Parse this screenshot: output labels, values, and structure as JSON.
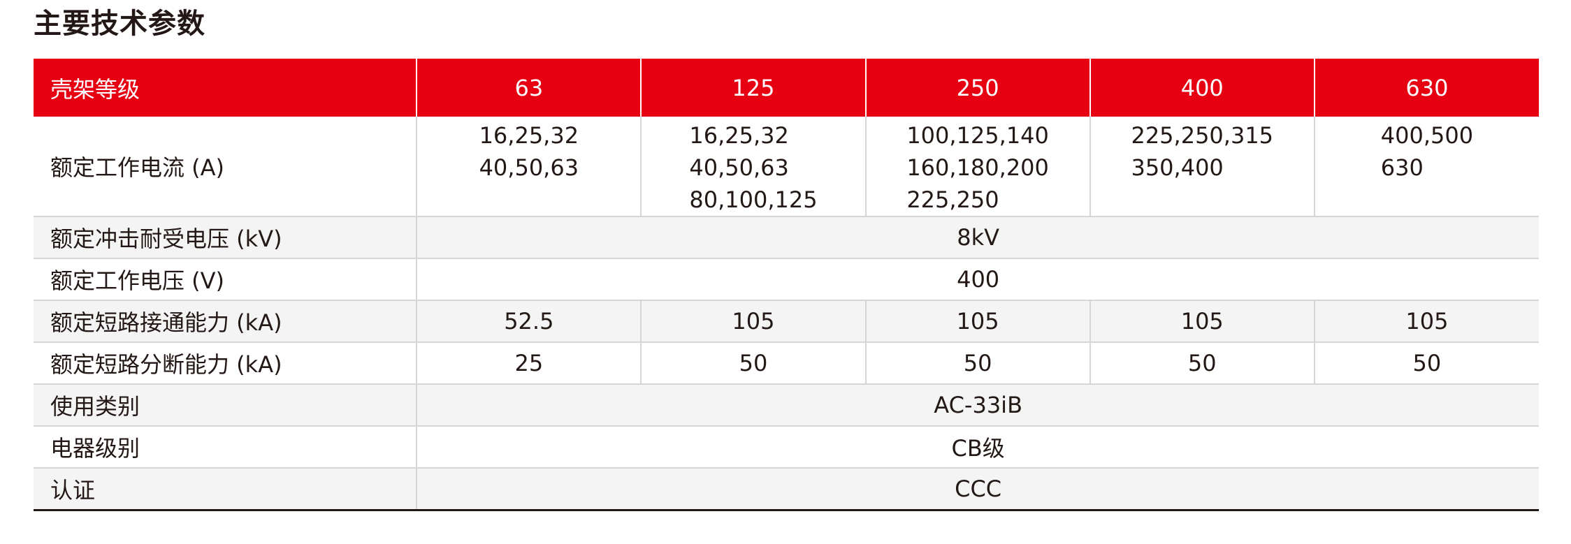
{
  "title": "主要技术参数",
  "table": {
    "header": [
      "壳架等级",
      "63",
      "125",
      "250",
      "400",
      "630"
    ],
    "rated_current": {
      "label": "额定工作电流 (A)",
      "values": [
        "16,25,32\n40,50,63",
        "16,25,32\n40,50,63\n80,100,125",
        "100,125,140\n160,180,200\n225,250",
        "225,250,315\n350,400",
        "400,500\n630"
      ]
    },
    "impulse_voltage": {
      "label": "额定冲击耐受电压 (kV)",
      "value": "8kV"
    },
    "operating_voltage": {
      "label": "额定工作电压 (V)",
      "value": "400"
    },
    "making_capacity": {
      "label": "额定短路接通能力 (kA)",
      "values": [
        "52.5",
        "105",
        "105",
        "105",
        "105"
      ]
    },
    "breaking_capacity": {
      "label": "额定短路分断能力 (kA)",
      "values": [
        "25",
        "50",
        "50",
        "50",
        "50"
      ]
    },
    "utilization_category": {
      "label": "使用类别",
      "value": "AC-33iB"
    },
    "appliance_class": {
      "label": "电器级别",
      "value": "CB级"
    },
    "certification": {
      "label": "认证",
      "value": "CCC"
    }
  },
  "colors": {
    "header_background": "#e60012",
    "header_text": "#ffffff",
    "body_text": "#231815",
    "row_shade": "#f4f4f4",
    "grid_line": "#d6d6d6"
  }
}
